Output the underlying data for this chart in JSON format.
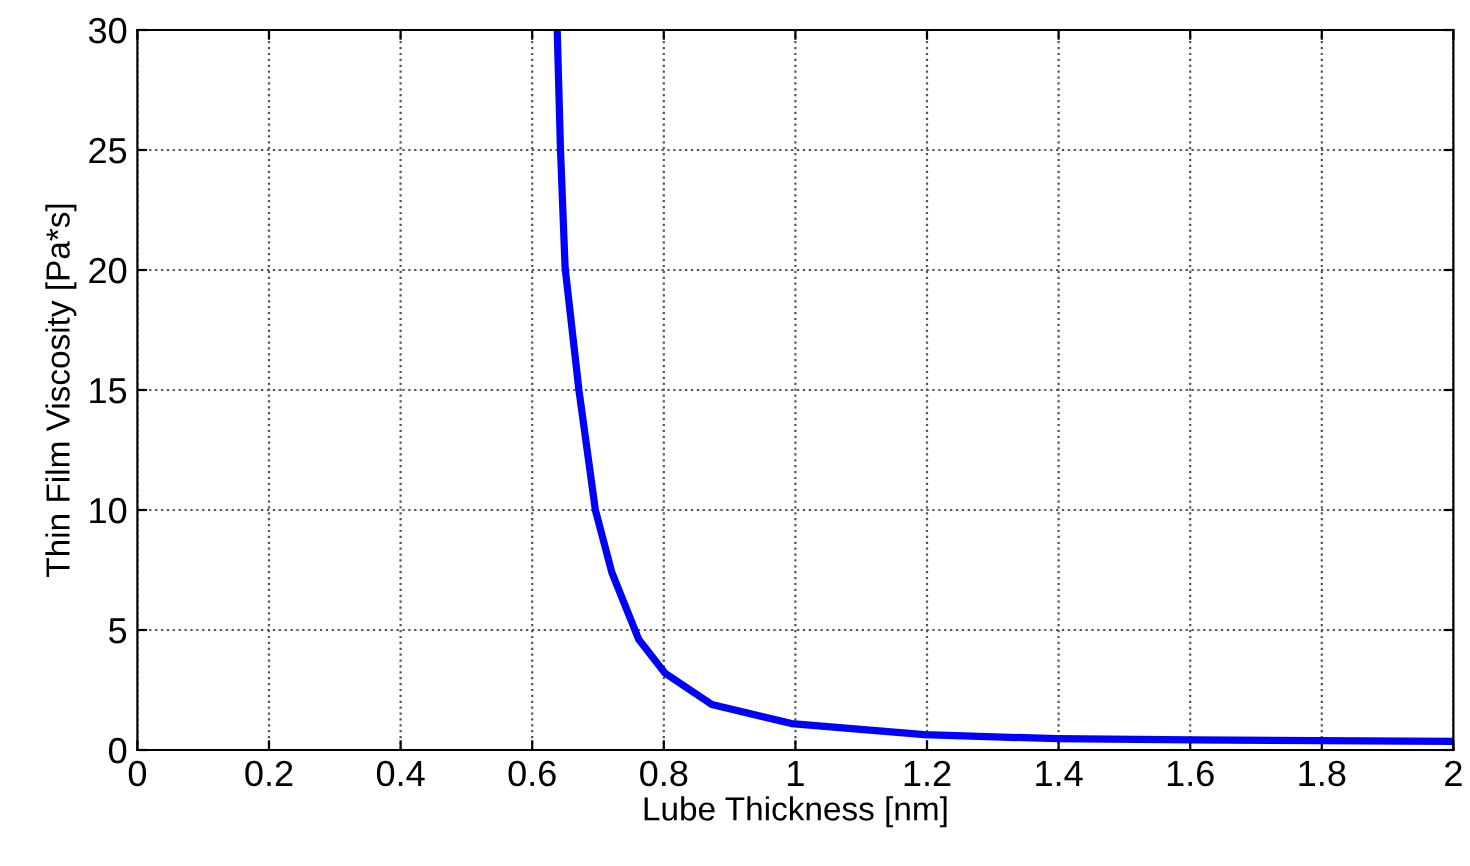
{
  "chart_data": {
    "type": "line",
    "xlabel": "Lube Thickness [nm]",
    "ylabel": "Thin Film Viscosity [Pa*s]",
    "xlim": [
      0,
      2
    ],
    "ylim": [
      0,
      30
    ],
    "xticks": [
      0,
      0.2,
      0.4,
      0.6,
      0.8,
      1,
      1.2,
      1.4,
      1.6,
      1.8,
      2
    ],
    "yticks": [
      0,
      5,
      10,
      15,
      20,
      25,
      30
    ],
    "grid": true,
    "series": [
      {
        "color": "#0000ff",
        "x": [
          0.638,
          0.643,
          0.65,
          0.671,
          0.696,
          0.721,
          0.762,
          0.802,
          0.873,
          0.994,
          1.196,
          1.398,
          1.6,
          2.0
        ],
        "values": [
          30,
          25,
          20.1,
          15,
          10,
          7.4,
          4.6,
          3.2,
          1.9,
          1.1,
          0.64,
          0.47,
          0.42,
          0.36
        ]
      }
    ]
  }
}
